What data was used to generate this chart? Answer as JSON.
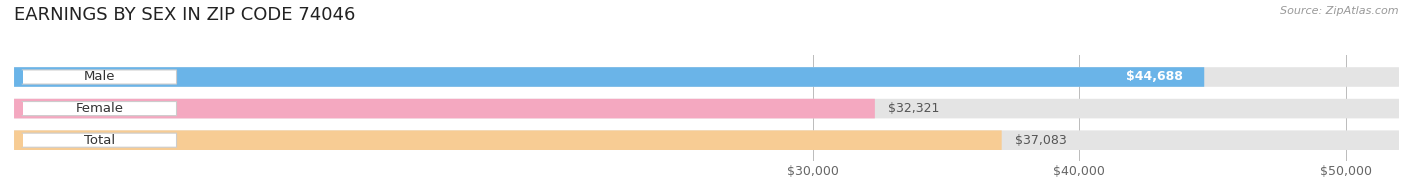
{
  "title": "EARNINGS BY SEX IN ZIP CODE 74046",
  "source": "Source: ZipAtlas.com",
  "categories": [
    "Male",
    "Female",
    "Total"
  ],
  "values": [
    44688,
    32321,
    37083
  ],
  "bar_colors": [
    "#6ab4e8",
    "#f4a8c0",
    "#f7cc94"
  ],
  "bar_bg_color": "#e4e4e4",
  "xticks": [
    30000,
    40000,
    50000
  ],
  "xtick_labels": [
    "$30,000",
    "$40,000",
    "$50,000"
  ],
  "xlim_min": 0,
  "xlim_max": 52000,
  "title_fontsize": 13,
  "tick_fontsize": 9,
  "bar_label_fontsize": 9,
  "source_fontsize": 8,
  "background_color": "#ffffff",
  "fig_width": 14.06,
  "fig_height": 1.96
}
